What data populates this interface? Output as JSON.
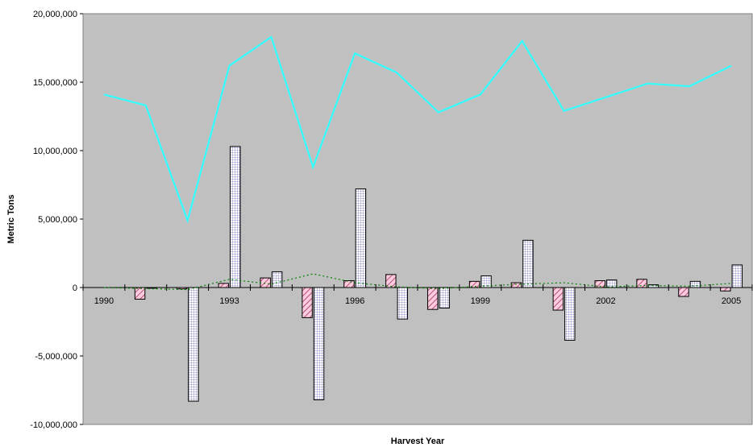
{
  "chart_data": {
    "type": "bar",
    "xlabel": "Harvest Year",
    "ylabel": "Metric Tons",
    "ylim": [
      -10000000,
      20000000
    ],
    "yticks": [
      -10000000,
      -5000000,
      0,
      5000000,
      10000000,
      15000000,
      20000000
    ],
    "ytick_labels": [
      "-10,000,000",
      "-5,000,000",
      "0",
      "5,000,000",
      "10,000,000",
      "15,000,000",
      "20,000,000"
    ],
    "categories": [
      "1990",
      "1991",
      "1992",
      "1993",
      "1994",
      "1995",
      "1996",
      "1997",
      "1998",
      "1999",
      "2000",
      "2001",
      "2002",
      "2003",
      "2004",
      "2005"
    ],
    "xtick_labels": [
      "1990",
      "",
      "",
      "1993",
      "",
      "",
      "1996",
      "",
      "",
      "1999",
      "",
      "",
      "2002",
      "",
      "",
      "2005"
    ],
    "grid": false,
    "background_color": "#c0c0c0",
    "series": [
      {
        "kind": "bar",
        "pattern": "diagonal-hatch",
        "color": "#993366",
        "fill": "#ffccdd",
        "values": [
          0,
          -850000,
          -100000,
          300000,
          700000,
          -2200000,
          500000,
          950000,
          -1600000,
          450000,
          350000,
          -1650000,
          500000,
          600000,
          -650000,
          -250000
        ]
      },
      {
        "kind": "bar",
        "pattern": "grid",
        "color": "#333399",
        "fill": "#ffffff",
        "values": [
          0,
          -50000,
          -8300000,
          10300000,
          1150000,
          -8200000,
          7200000,
          -2300000,
          -1500000,
          850000,
          3450000,
          -3850000,
          550000,
          200000,
          450000,
          1650000
        ]
      },
      {
        "kind": "line",
        "style": "solid",
        "color": "#33ffff",
        "values": [
          14100000,
          13300000,
          4900000,
          16200000,
          18300000,
          8800000,
          17100000,
          15700000,
          12800000,
          14100000,
          18000000,
          12900000,
          13900000,
          14900000,
          14700000,
          16200000
        ]
      },
      {
        "kind": "line",
        "style": "dotted",
        "color": "#008000",
        "values": [
          0,
          -80000,
          -150000,
          600000,
          250000,
          1000000,
          350000,
          50000,
          -80000,
          100000,
          250000,
          350000,
          50000,
          150000,
          100000,
          300000
        ]
      }
    ]
  }
}
